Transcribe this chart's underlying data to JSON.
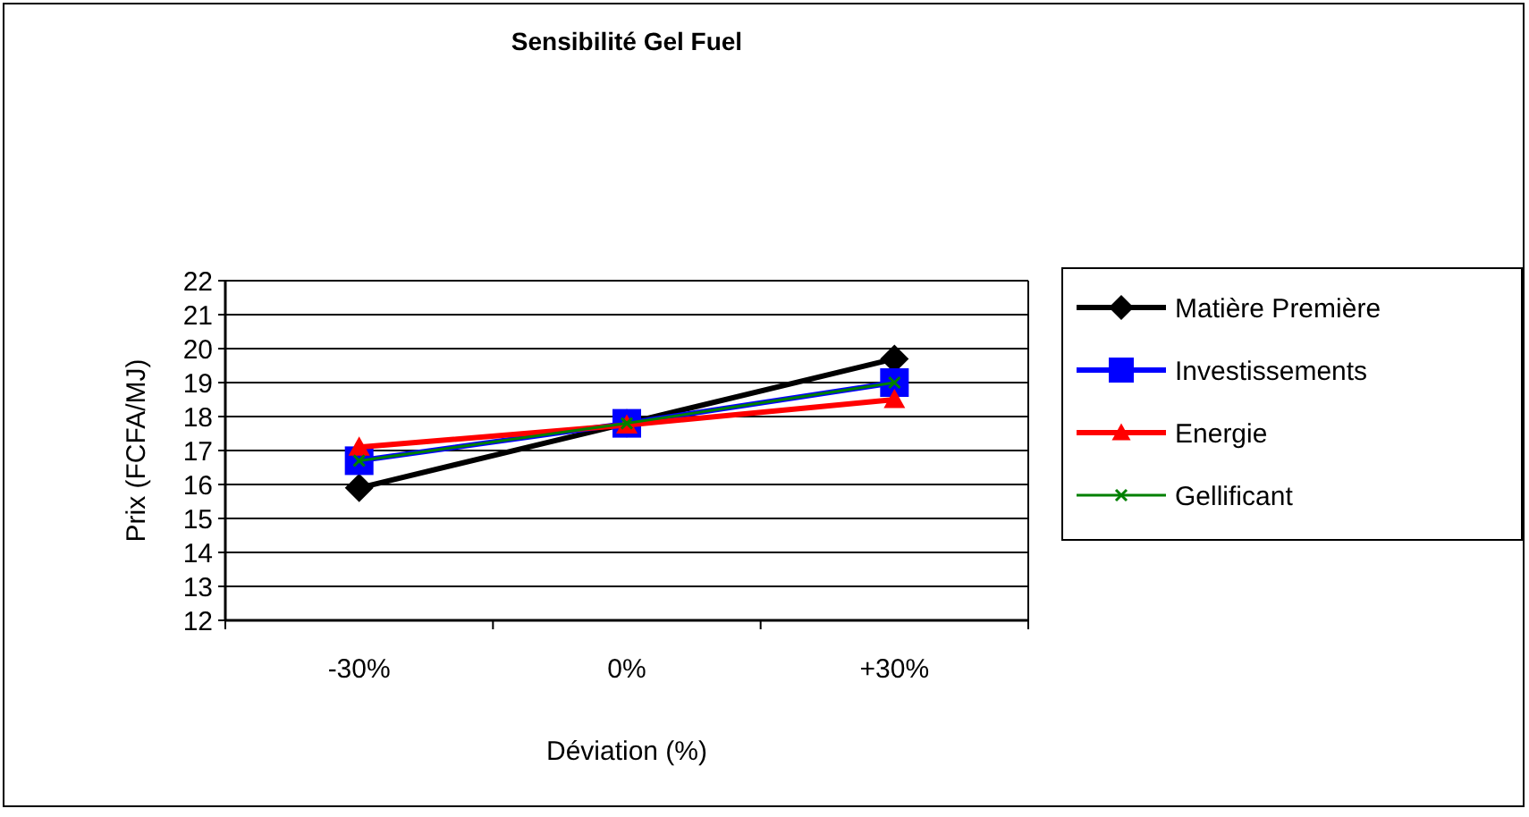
{
  "chart_data": {
    "type": "line",
    "title": "Sensibilité Gel Fuel",
    "xlabel": "Déviation (%)",
    "ylabel": "Prix (FCFA/MJ)",
    "categories": [
      "-30%",
      "0%",
      "+30%"
    ],
    "ylim": [
      12,
      22
    ],
    "yticks": [
      12,
      13,
      14,
      15,
      16,
      17,
      18,
      19,
      20,
      21,
      22
    ],
    "grid": "y",
    "legend": "right",
    "series": [
      {
        "name": "Matière Première",
        "color": "#000000",
        "marker": "diamond",
        "values": [
          15.9,
          17.8,
          19.7
        ]
      },
      {
        "name": "Investissements",
        "color": "#0000ff",
        "marker": "square",
        "values": [
          16.7,
          17.8,
          19.0
        ]
      },
      {
        "name": "Energie",
        "color": "#ff0000",
        "marker": "triangle",
        "values": [
          17.1,
          17.75,
          18.5
        ]
      },
      {
        "name": "Gellificant",
        "color": "#008000",
        "marker": "cross",
        "values": [
          16.7,
          17.8,
          19.0
        ]
      }
    ]
  }
}
